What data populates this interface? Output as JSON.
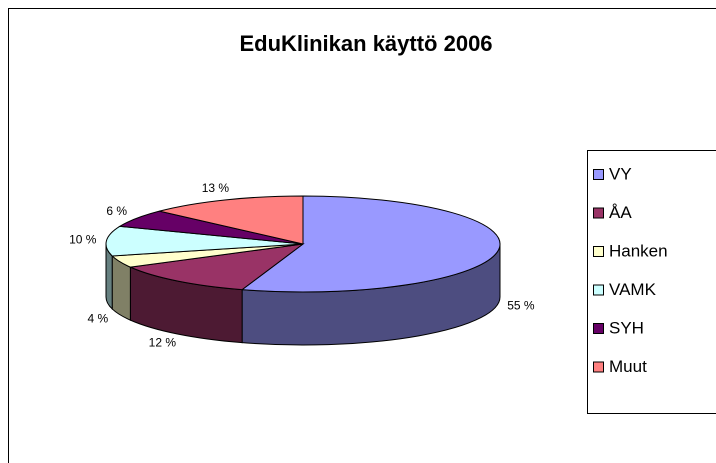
{
  "chart_data": {
    "type": "pie",
    "title": "EduKlinikan käyttö 2006",
    "categories": [
      "VY",
      "ÅA",
      "Hanken",
      "VAMK",
      "SYH",
      "Muut"
    ],
    "values": [
      55,
      12,
      4,
      10,
      6,
      13
    ],
    "value_labels": [
      "55 %",
      "12 %",
      "4 %",
      "10 %",
      "6 %",
      "13 %"
    ],
    "colors": [
      "#9999ff",
      "#993366",
      "#ffffcc",
      "#ccffff",
      "#660066",
      "#ff8080"
    ],
    "legend": "right"
  }
}
